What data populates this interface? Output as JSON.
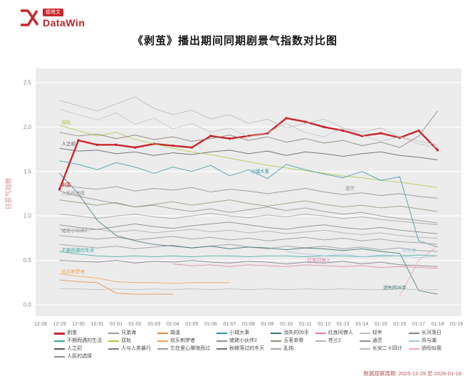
{
  "logo": {
    "cn": "德塔文",
    "en": "DataWin"
  },
  "title": "《剥茧》播出期间同期剧景气指数对比图",
  "footer": {
    "period": "数据观察周期: 2025-12-29 至 2026-01-18"
  },
  "chart_data": {
    "type": "line",
    "title": "《剥茧》播出期间同期剧景气指数对比图",
    "ylabel": "日景气指数",
    "ylim": [
      0,
      2.5
    ],
    "yticks": [
      0.0,
      0.5,
      1.0,
      1.5,
      2.0,
      2.5
    ],
    "grid": true,
    "legend_position": "bottom",
    "x": [
      "12-28",
      "12-29",
      "12-30",
      "12-31",
      "01-01",
      "01-02",
      "01-03",
      "01-04",
      "01-05",
      "01-06",
      "01-07",
      "01-08",
      "01-09",
      "01-10",
      "01-11",
      "01-12",
      "01-13",
      "01-14",
      "01-15",
      "01-16",
      "01-17",
      "01-18",
      "01-19"
    ],
    "series": [
      {
        "name": "剥茧",
        "color": "#c9252c",
        "width": 2.4,
        "markers": true,
        "values": [
          null,
          1.3,
          1.85,
          1.8,
          1.8,
          1.77,
          1.81,
          1.79,
          1.77,
          1.9,
          1.87,
          1.9,
          1.93,
          2.1,
          2.06,
          2.0,
          1.96,
          1.9,
          1.93,
          1.88,
          1.96,
          1.74,
          null
        ]
      },
      {
        "name": "不期而遇的生活",
        "color": "#35a79c",
        "values": [
          null,
          0.6,
          0.57,
          0.55,
          0.54,
          0.55,
          0.54,
          0.55,
          0.54,
          0.55,
          0.55,
          0.54,
          0.55,
          0.55,
          0.54,
          0.55,
          0.55,
          0.54,
          0.55,
          0.55,
          0.56,
          0.55,
          null
        ]
      },
      {
        "name": "人之初",
        "color": "#50505e",
        "values": [
          null,
          1.76,
          1.73,
          1.74,
          1.7,
          1.72,
          1.68,
          1.71,
          1.69,
          1.72,
          1.74,
          1.7,
          1.73,
          1.68,
          1.72,
          1.7,
          1.67,
          1.7,
          1.72,
          1.68,
          1.66,
          1.63,
          null
        ]
      },
      {
        "name": "人民的选择",
        "color": "#8a8a8a",
        "values": [
          null,
          1.28,
          1.22,
          1.18,
          1.14,
          1.1,
          1.12,
          1.08,
          1.05,
          1.08,
          1.04,
          1.07,
          1.1,
          1.06,
          1.09,
          1.05,
          1.02,
          1.04,
          1.0,
          0.97,
          0.95,
          0.92,
          null
        ]
      },
      {
        "name": "兄弟海",
        "color": "#9a9a9a",
        "values": [
          null,
          1.02,
          1.0,
          0.97,
          1.0,
          1.02,
          0.99,
          0.97,
          1.0,
          1.03,
          1.0,
          0.98,
          1.01,
          0.99,
          1.02,
          1.0,
          0.97,
          0.99,
          0.96,
          0.94,
          0.92,
          0.9,
          null
        ]
      },
      {
        "name": "双轨",
        "color": "#a8c83c",
        "values": [
          null,
          2.02,
          1.96,
          1.9,
          1.94,
          1.86,
          1.81,
          1.76,
          1.72,
          1.69,
          1.65,
          1.61,
          1.57,
          1.54,
          1.51,
          1.48,
          1.45,
          1.43,
          1.4,
          1.38,
          1.35,
          1.32,
          null
        ]
      },
      {
        "name": "人与人类暴行",
        "color": "#7a7a7a",
        "values": [
          null,
          0.9,
          0.87,
          0.85,
          0.88,
          0.91,
          0.88,
          0.86,
          0.89,
          0.91,
          0.93,
          0.9,
          0.87,
          0.85,
          0.88,
          0.9,
          0.87,
          0.85,
          0.87,
          0.84,
          0.82,
          0.8,
          null
        ]
      },
      {
        "name": "婚逢",
        "color": "#e8833a",
        "values": [
          null,
          0.28,
          0.26,
          0.25,
          0.13,
          0.12,
          0.12,
          0.12,
          null,
          null,
          null,
          null,
          null,
          null,
          null,
          null,
          null,
          null,
          null,
          null,
          null,
          null,
          null
        ]
      },
      {
        "name": "欢乐刺梦者",
        "color": "#f0a04b",
        "values": [
          null,
          0.35,
          0.32,
          0.3,
          0.26,
          0.25,
          0.25,
          0.24,
          0.25,
          0.25,
          0.25,
          null,
          null,
          null,
          null,
          null,
          null,
          null,
          null,
          null,
          null,
          null,
          null
        ]
      },
      {
        "name": "它在爱心琳琅而过",
        "color": "#9a9aa5",
        "values": [
          null,
          0.68,
          0.66,
          0.64,
          0.66,
          0.63,
          0.65,
          0.67,
          0.64,
          0.66,
          0.68,
          0.65,
          0.63,
          0.66,
          0.64,
          0.66,
          0.63,
          0.65,
          0.62,
          0.64,
          0.61,
          0.6,
          null
        ]
      },
      {
        "name": "小城大事",
        "color": "#2f8fa3",
        "values": [
          null,
          1.62,
          1.58,
          1.52,
          1.6,
          1.55,
          1.48,
          1.55,
          1.5,
          1.57,
          1.45,
          1.52,
          1.42,
          1.58,
          1.52,
          1.47,
          1.43,
          1.5,
          1.4,
          1.44,
          0.72,
          0.65,
          null
        ]
      },
      {
        "name": "姥姥小伙伴2",
        "color": "#8f8f8f",
        "values": [
          null,
          0.78,
          0.76,
          0.74,
          0.76,
          0.73,
          0.75,
          0.77,
          0.74,
          0.76,
          0.73,
          0.75,
          0.72,
          0.74,
          0.76,
          0.73,
          0.75,
          0.72,
          0.74,
          0.71,
          0.7,
          0.68,
          null
        ]
      },
      {
        "name": "秋蝉落过的冬天",
        "color": "#70707e",
        "values": [
          null,
          0.5,
          0.49,
          0.48,
          0.5,
          0.47,
          0.49,
          0.48,
          0.5,
          0.48,
          0.47,
          0.49,
          0.48,
          0.46,
          0.48,
          0.47,
          0.49,
          0.46,
          0.48,
          0.45,
          0.44,
          0.43,
          null
        ]
      },
      {
        "name": "消失的05手",
        "color": "#3a7070",
        "values": [
          null,
          1.48,
          1.25,
          0.95,
          0.78,
          0.72,
          0.68,
          0.66,
          0.64,
          0.66,
          0.63,
          0.65,
          0.64,
          0.62,
          0.64,
          0.63,
          0.61,
          0.63,
          0.6,
          0.58,
          0.16,
          0.12,
          null
        ]
      },
      {
        "name": "玉茗茶骨",
        "color": "#85926f",
        "values": [
          null,
          1.18,
          1.15,
          1.12,
          1.15,
          1.1,
          1.13,
          1.16,
          1.12,
          1.15,
          1.18,
          1.14,
          1.11,
          1.14,
          1.17,
          1.13,
          1.1,
          1.12,
          1.09,
          1.11,
          1.08,
          1.05,
          null
        ]
      },
      {
        "name": "乱炖",
        "color": "#a5a5a5",
        "values": [
          null,
          0.85,
          0.83,
          0.85,
          0.82,
          0.84,
          0.81,
          0.83,
          0.85,
          0.82,
          0.84,
          0.81,
          0.83,
          0.8,
          0.82,
          0.84,
          0.81,
          0.79,
          0.81,
          0.78,
          0.76,
          0.75,
          null
        ]
      },
      {
        "name": "红炼同僚人",
        "color": "#e07b9e",
        "values": [
          null,
          null,
          null,
          null,
          null,
          null,
          null,
          0.46,
          0.44,
          0.45,
          0.43,
          0.45,
          0.44,
          0.43,
          0.45,
          0.44,
          0.43,
          0.44,
          0.42,
          0.43,
          0.42,
          0.41,
          null
        ]
      },
      {
        "name": "苍兰2",
        "color": "#b5b5b5",
        "values": [
          null,
          2.3,
          2.24,
          2.18,
          2.26,
          2.34,
          2.21,
          2.14,
          2.19,
          2.09,
          2.14,
          2.04,
          2.09,
          1.99,
          2.04,
          2.09,
          1.99,
          1.94,
          1.99,
          1.89,
          1.84,
          1.8,
          null
        ]
      },
      {
        "name": "轻年",
        "color": "#c2c2c2",
        "values": [
          null,
          2.2,
          2.14,
          2.08,
          2.16,
          2.03,
          2.1,
          1.98,
          2.04,
          1.94,
          1.99,
          1.89,
          1.94,
          2.04,
          1.94,
          1.89,
          1.99,
          1.91,
          1.84,
          1.89,
          1.81,
          1.77,
          null
        ]
      },
      {
        "name": "通灵",
        "color": "#8c8c9c",
        "values": [
          null,
          1.35,
          1.32,
          1.3,
          1.33,
          1.28,
          1.31,
          1.29,
          1.32,
          1.27,
          1.3,
          1.28,
          1.25,
          1.28,
          1.31,
          1.27,
          1.24,
          1.26,
          1.23,
          1.25,
          1.22,
          1.2,
          null
        ]
      },
      {
        "name": "长安二十四计",
        "color": "#bcbcbc",
        "values": [
          null,
          0.18,
          0.18,
          0.17,
          0.18,
          0.17,
          0.18,
          0.17,
          0.18,
          0.17,
          0.18,
          0.17,
          0.18,
          0.17,
          0.18,
          0.17,
          0.18,
          0.17,
          0.17,
          0.18,
          0.17,
          0.17,
          null
        ]
      },
      {
        "name": "长河落日",
        "color": "#8d7b6d",
        "values": [
          null,
          1.94,
          1.9,
          1.92,
          1.87,
          1.91,
          1.86,
          1.89,
          1.84,
          1.87,
          1.91,
          1.85,
          1.89,
          1.83,
          1.87,
          1.82,
          1.85,
          1.79,
          1.83,
          1.77,
          1.9,
          2.18,
          null
        ]
      },
      {
        "name": "风与潮",
        "color": "#9ec8e0",
        "values": [
          null,
          null,
          null,
          null,
          null,
          null,
          null,
          null,
          null,
          null,
          null,
          null,
          null,
          0.6,
          0.57,
          0.55,
          0.57,
          0.54,
          0.56,
          0.55,
          0.53,
          0.55,
          null
        ]
      },
      {
        "name": "骄阳似我",
        "color": "#efa8b8",
        "values": [
          null,
          null,
          null,
          null,
          null,
          null,
          null,
          null,
          null,
          null,
          null,
          null,
          null,
          null,
          null,
          null,
          null,
          null,
          null,
          0.1,
          0.5,
          0.66,
          null
        ]
      }
    ],
    "legend_columns": [
      [
        0,
        1,
        2,
        3
      ],
      [
        4,
        5,
        6
      ],
      [
        7,
        8,
        9
      ],
      [
        10,
        11,
        12
      ],
      [
        13,
        14,
        15
      ],
      [
        16,
        17
      ],
      [
        18,
        19,
        20
      ],
      [
        21,
        22,
        23
      ]
    ],
    "annotations": [
      {
        "x": 1,
        "y": 2.02,
        "text": "双轨",
        "color": "#a8c83c"
      },
      {
        "x": 1,
        "y": 1.78,
        "text": "人之初",
        "color": "#50505e"
      },
      {
        "x": 1,
        "y": 1.32,
        "text": "剥茧",
        "color": "#c9252c"
      },
      {
        "x": 1,
        "y": 1.22,
        "text": "人民的选择",
        "color": "#8a8a8a"
      },
      {
        "x": 1,
        "y": 0.8,
        "text": "姥姥小伙伴2",
        "color": "#8f8f8f"
      },
      {
        "x": 1,
        "y": 0.58,
        "text": "不期而遇的生活",
        "color": "#35a79c"
      },
      {
        "x": 1,
        "y": 0.34,
        "text": "欢乐刺梦者",
        "color": "#f0a04b"
      },
      {
        "x": 11,
        "y": 1.47,
        "text": "小城大事",
        "color": "#2f8fa3"
      },
      {
        "x": 16,
        "y": 1.28,
        "text": "通灵",
        "color": "#8c8c9c"
      },
      {
        "x": 14,
        "y": 0.47,
        "text": "红炼同僚人",
        "color": "#e07b9e"
      },
      {
        "x": 19,
        "y": 0.58,
        "text": "风与潮",
        "color": "#9ec8e0"
      },
      {
        "x": 18,
        "y": 0.16,
        "text": "消失的05手",
        "color": "#3a7070"
      }
    ]
  }
}
